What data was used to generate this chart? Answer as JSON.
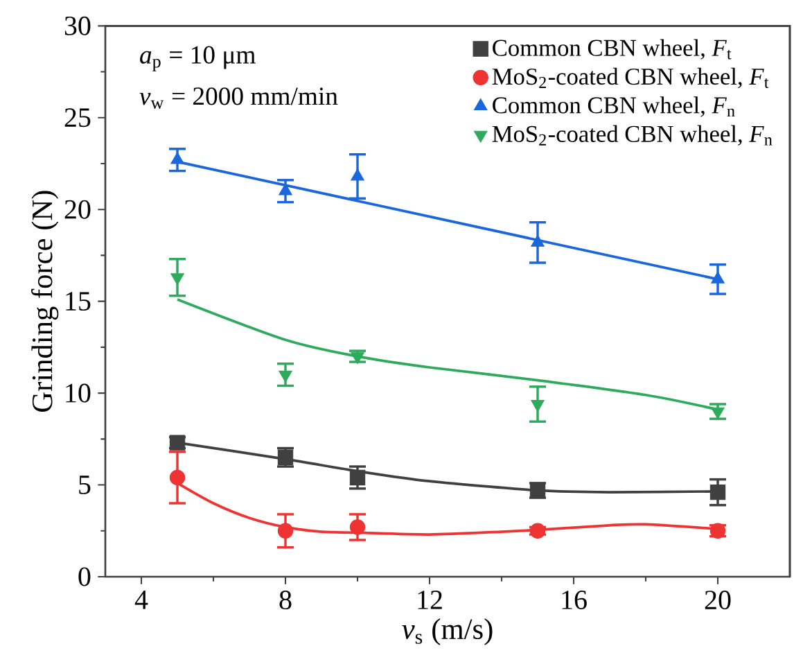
{
  "chart_data": {
    "type": "scatter",
    "xlabel": "*v*$_{s}$ (m/s)",
    "ylabel": "Grinding force (N)",
    "annotations": [
      "*a*$_{p}$ = 10 μm",
      "*v*$_{w}$ = 2000 mm/min"
    ],
    "xlim": [
      3,
      22
    ],
    "xticks": [
      4,
      8,
      12,
      16,
      20
    ],
    "ylim": [
      0,
      30
    ],
    "yticks": [
      0,
      5,
      10,
      15,
      20,
      25,
      30
    ],
    "grid": false,
    "legend": "top right",
    "series": [
      {
        "name": "Common CBN wheel, *F*$_{t}$",
        "color": "#404040",
        "marker": "square",
        "x": [
          5,
          8,
          10,
          15,
          20
        ],
        "values": [
          7.3,
          6.5,
          5.4,
          4.7,
          4.6
        ],
        "errors": [
          0.3,
          0.5,
          0.6,
          0.4,
          0.7
        ]
      },
      {
        "name": "MoS$_{2}$-coated CBN wheel, *F*$_{t}$",
        "color": "#ee3333",
        "marker": "circle",
        "x": [
          5,
          8,
          10,
          15,
          20
        ],
        "values": [
          5.4,
          2.5,
          2.7,
          2.5,
          2.5
        ],
        "errors": [
          1.4,
          0.9,
          0.7,
          0.2,
          0.3
        ]
      },
      {
        "name": "Common CBN wheel, *F*$_{n}$",
        "color": "#1a66dd",
        "marker": "triangle",
        "x": [
          5,
          8,
          10,
          15,
          20
        ],
        "values": [
          22.7,
          21.0,
          21.8,
          18.2,
          16.2
        ],
        "errors": [
          0.6,
          0.6,
          1.2,
          1.1,
          0.8
        ]
      },
      {
        "name": "MoS$_{2}$-coated  CBN wheel, *F*$_{n}$",
        "color": "#2eaa5c",
        "marker": "triangle-down",
        "x": [
          5,
          8,
          10,
          15,
          20
        ],
        "values": [
          16.3,
          11.0,
          12.0,
          9.4,
          9.0
        ],
        "errors": [
          1.0,
          0.6,
          0.3,
          0.95,
          0.4
        ]
      },
      {
        "type": "line",
        "color": "#404040",
        "x": [
          5,
          8,
          10,
          12,
          15,
          17,
          20
        ],
        "values": [
          7.3,
          6.4,
          5.75,
          5.2,
          4.7,
          4.6,
          4.65
        ]
      },
      {
        "type": "line",
        "color": "#ee3333",
        "x": [
          5,
          6,
          7,
          8,
          9,
          10,
          12,
          14,
          15,
          17,
          18,
          20
        ],
        "values": [
          5.1,
          4.0,
          3.2,
          2.7,
          2.45,
          2.4,
          2.3,
          2.45,
          2.55,
          2.8,
          2.85,
          2.6
        ]
      },
      {
        "type": "line",
        "color": "#1a66dd",
        "x": [
          5,
          20
        ],
        "values": [
          22.6,
          16.2
        ]
      },
      {
        "type": "line",
        "color": "#2eaa5c",
        "x": [
          5,
          8,
          10,
          12,
          15,
          18,
          20
        ],
        "values": [
          15.1,
          12.9,
          12.0,
          11.4,
          10.7,
          9.9,
          9.1
        ]
      }
    ]
  }
}
